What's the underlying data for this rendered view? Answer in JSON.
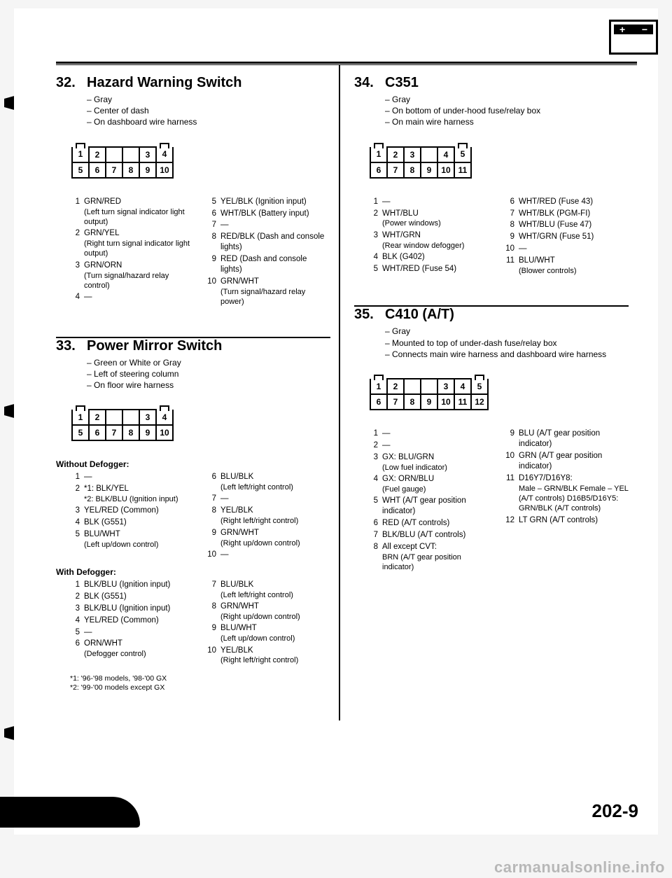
{
  "page_number": "202-9",
  "watermark": "carmanualsonline.info",
  "sections": {
    "s32": {
      "num": "32.",
      "title": "Hazard Warning Switch",
      "bullets": [
        "Gray",
        "Center of dash",
        "On dashboard wire harness"
      ],
      "connector_rows": [
        [
          "1",
          "2",
          "",
          "",
          "3",
          "4"
        ],
        [
          "5",
          "6",
          "7",
          "8",
          "9",
          "10"
        ]
      ],
      "pins_left": [
        {
          "n": "1",
          "t": "GRN/RED",
          "sub": "(Left turn signal indicator light output)"
        },
        {
          "n": "2",
          "t": "GRN/YEL",
          "sub": "(Right turn signal indicator light output)"
        },
        {
          "n": "3",
          "t": "GRN/ORN",
          "sub": "(Turn signal/hazard relay control)"
        },
        {
          "n": "4",
          "t": "—",
          "sub": ""
        }
      ],
      "pins_right": [
        {
          "n": "5",
          "t": "YEL/BLK (Ignition input)",
          "sub": ""
        },
        {
          "n": "6",
          "t": "WHT/BLK (Battery input)",
          "sub": ""
        },
        {
          "n": "7",
          "t": "—",
          "sub": ""
        },
        {
          "n": "8",
          "t": "RED/BLK (Dash and console lights)",
          "sub": ""
        },
        {
          "n": "9",
          "t": "RED (Dash and console lights)",
          "sub": ""
        },
        {
          "n": "10",
          "t": "GRN/WHT",
          "sub": "(Turn signal/hazard relay power)"
        }
      ]
    },
    "s33": {
      "num": "33.",
      "title": "Power Mirror Switch",
      "bullets": [
        "Green or White or Gray",
        "Left of steering column",
        "On floor wire harness"
      ],
      "connector_rows": [
        [
          "1",
          "2",
          "",
          "",
          "3",
          "4"
        ],
        [
          "5",
          "6",
          "7",
          "8",
          "9",
          "10"
        ]
      ],
      "sub_without": "Without Defogger:",
      "without_left": [
        {
          "n": "1",
          "t": "—",
          "sub": ""
        },
        {
          "n": "2",
          "t": "*1: BLK/YEL",
          "sub": "*2: BLK/BLU (Ignition input)"
        },
        {
          "n": "3",
          "t": "YEL/RED (Common)",
          "sub": ""
        },
        {
          "n": "4",
          "t": "BLK (G551)",
          "sub": ""
        },
        {
          "n": "5",
          "t": "BLU/WHT",
          "sub": "(Left up/down control)"
        }
      ],
      "without_right": [
        {
          "n": "6",
          "t": "BLU/BLK",
          "sub": "(Left left/right control)"
        },
        {
          "n": "7",
          "t": "—",
          "sub": ""
        },
        {
          "n": "8",
          "t": "YEL/BLK",
          "sub": "(Right left/right control)"
        },
        {
          "n": "9",
          "t": "GRN/WHT",
          "sub": "(Right up/down control)"
        },
        {
          "n": "10",
          "t": "—",
          "sub": ""
        }
      ],
      "sub_with": "With Defogger:",
      "with_left": [
        {
          "n": "1",
          "t": "BLK/BLU (Ignition input)",
          "sub": ""
        },
        {
          "n": "2",
          "t": "BLK (G551)",
          "sub": ""
        },
        {
          "n": "3",
          "t": "BLK/BLU (Ignition input)",
          "sub": ""
        },
        {
          "n": "4",
          "t": "YEL/RED (Common)",
          "sub": ""
        },
        {
          "n": "5",
          "t": "—",
          "sub": ""
        },
        {
          "n": "6",
          "t": "ORN/WHT",
          "sub": "(Defogger control)"
        }
      ],
      "with_right": [
        {
          "n": "7",
          "t": "BLU/BLK",
          "sub": "(Left left/right control)"
        },
        {
          "n": "8",
          "t": "GRN/WHT",
          "sub": "(Right up/down control)"
        },
        {
          "n": "9",
          "t": "BLU/WHT",
          "sub": "(Left up/down control)"
        },
        {
          "n": "10",
          "t": "YEL/BLK",
          "sub": "(Right left/right control)"
        }
      ],
      "footnotes": [
        "*1: '96-'98 models, '98-'00 GX",
        "*2: '99-'00 models except GX"
      ]
    },
    "s34": {
      "num": "34.",
      "title": "C351",
      "bullets": [
        "Gray",
        "On bottom of under-hood fuse/relay box",
        "On main wire harness"
      ],
      "connector_rows": [
        [
          "1",
          "2",
          "3",
          "",
          "4",
          "5"
        ],
        [
          "6",
          "7",
          "8",
          "9",
          "10",
          "11"
        ]
      ],
      "pins_left": [
        {
          "n": "1",
          "t": "—",
          "sub": ""
        },
        {
          "n": "2",
          "t": "WHT/BLU",
          "sub": "(Power windows)"
        },
        {
          "n": "3",
          "t": "WHT/GRN",
          "sub": "(Rear window defogger)"
        },
        {
          "n": "4",
          "t": "BLK (G402)",
          "sub": ""
        },
        {
          "n": "5",
          "t": "WHT/RED (Fuse 54)",
          "sub": ""
        }
      ],
      "pins_right": [
        {
          "n": "6",
          "t": "WHT/RED (Fuse 43)",
          "sub": ""
        },
        {
          "n": "7",
          "t": "WHT/BLK (PGM-FI)",
          "sub": ""
        },
        {
          "n": "8",
          "t": "WHT/BLU (Fuse 47)",
          "sub": ""
        },
        {
          "n": "9",
          "t": "WHT/GRN (Fuse 51)",
          "sub": ""
        },
        {
          "n": "10",
          "t": "—",
          "sub": ""
        },
        {
          "n": "11",
          "t": "BLU/WHT",
          "sub": "(Blower controls)"
        }
      ]
    },
    "s35": {
      "num": "35.",
      "title": "C410 (A/T)",
      "bullets": [
        "Gray",
        "Mounted to top of under-dash fuse/relay box",
        "Connects main wire harness and dashboard wire harness"
      ],
      "connector_rows": [
        [
          "1",
          "2",
          "",
          "",
          "3",
          "4",
          "5"
        ],
        [
          "6",
          "7",
          "8",
          "9",
          "10",
          "11",
          "12"
        ]
      ],
      "pins_left": [
        {
          "n": "1",
          "t": "—",
          "sub": ""
        },
        {
          "n": "2",
          "t": "—",
          "sub": ""
        },
        {
          "n": "3",
          "t": "GX: BLU/GRN",
          "sub": "(Low fuel indicator)"
        },
        {
          "n": "4",
          "t": "GX: ORN/BLU",
          "sub": "(Fuel gauge)"
        },
        {
          "n": "5",
          "t": "WHT (A/T gear position indicator)",
          "sub": ""
        },
        {
          "n": "6",
          "t": "RED (A/T controls)",
          "sub": ""
        },
        {
          "n": "7",
          "t": "BLK/BLU (A/T controls)",
          "sub": ""
        },
        {
          "n": "8",
          "t": "All except CVT:",
          "sub": "BRN (A/T gear position indicator)"
        }
      ],
      "pins_right": [
        {
          "n": "9",
          "t": "BLU (A/T gear position indicator)",
          "sub": ""
        },
        {
          "n": "10",
          "t": "GRN (A/T gear position indicator)",
          "sub": ""
        },
        {
          "n": "11",
          "t": "D16Y7/D16Y8:",
          "sub": "Male – GRN/BLK Female – YEL (A/T controls) D16B5/D16Y5: GRN/BLK (A/T controls)"
        },
        {
          "n": "12",
          "t": "LT GRN (A/T controls)",
          "sub": ""
        }
      ]
    }
  }
}
